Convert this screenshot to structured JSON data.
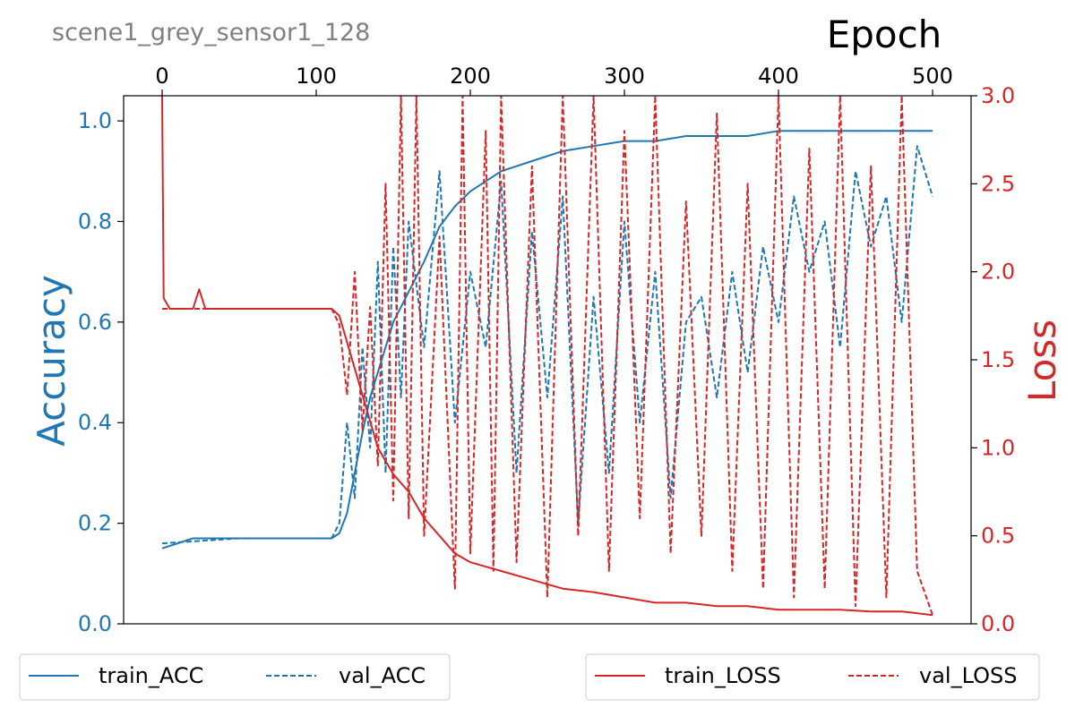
{
  "chart_data": {
    "type": "line",
    "title": "scene1_grey_sensor1_128",
    "xlabel": "Epoch",
    "ylabel": "Accuracy",
    "y2label": "Loss",
    "xlim": [
      -25,
      525
    ],
    "ylim": [
      0,
      1.05
    ],
    "y2lim": [
      0,
      3.0
    ],
    "x_ticks": [
      0,
      100,
      200,
      300,
      400,
      500
    ],
    "y_ticks": [
      0.0,
      0.2,
      0.4,
      0.6,
      0.8,
      1.0
    ],
    "y2_ticks": [
      0.0,
      0.5,
      1.0,
      1.5,
      2.0,
      2.5,
      3.0
    ],
    "x_axis_position": "top",
    "grid": false,
    "colors": {
      "acc": "#1f77b4",
      "loss": "#d62728",
      "title": "#808080"
    },
    "legends": [
      {
        "placement": "bottom-left",
        "entries": [
          "train_ACC",
          "val_ACC"
        ]
      },
      {
        "placement": "bottom-right",
        "entries": [
          "train_LOSS",
          "val_LOSS"
        ]
      }
    ],
    "series": [
      {
        "name": "train_ACC",
        "axis": "left",
        "style": "solid",
        "color": "#1f77b4",
        "x": [
          0,
          20,
          40,
          60,
          80,
          100,
          110,
          115,
          120,
          125,
          130,
          135,
          140,
          145,
          150,
          160,
          170,
          180,
          190,
          200,
          220,
          240,
          260,
          280,
          300,
          320,
          340,
          360,
          380,
          400,
          420,
          440,
          460,
          480,
          500
        ],
        "values": [
          0.15,
          0.17,
          0.17,
          0.17,
          0.17,
          0.17,
          0.17,
          0.18,
          0.22,
          0.3,
          0.38,
          0.45,
          0.5,
          0.55,
          0.6,
          0.66,
          0.72,
          0.79,
          0.83,
          0.86,
          0.9,
          0.92,
          0.94,
          0.95,
          0.96,
          0.96,
          0.97,
          0.97,
          0.97,
          0.98,
          0.98,
          0.98,
          0.98,
          0.98,
          0.98
        ]
      },
      {
        "name": "val_ACC",
        "axis": "left",
        "style": "dashed",
        "color": "#1f77b4",
        "x": [
          0,
          50,
          100,
          110,
          115,
          120,
          125,
          130,
          135,
          140,
          145,
          150,
          155,
          160,
          170,
          180,
          190,
          200,
          210,
          220,
          230,
          240,
          250,
          260,
          270,
          280,
          290,
          300,
          310,
          320,
          330,
          340,
          350,
          360,
          370,
          380,
          390,
          400,
          410,
          420,
          430,
          440,
          450,
          460,
          470,
          480,
          490,
          500
        ],
        "values": [
          0.16,
          0.17,
          0.17,
          0.17,
          0.2,
          0.4,
          0.25,
          0.55,
          0.35,
          0.72,
          0.3,
          0.75,
          0.45,
          0.8,
          0.55,
          0.9,
          0.4,
          0.7,
          0.55,
          0.88,
          0.3,
          0.78,
          0.45,
          0.85,
          0.2,
          0.65,
          0.3,
          0.8,
          0.4,
          0.7,
          0.25,
          0.6,
          0.65,
          0.45,
          0.7,
          0.5,
          0.75,
          0.6,
          0.85,
          0.7,
          0.8,
          0.55,
          0.9,
          0.75,
          0.85,
          0.6,
          0.95,
          0.85
        ]
      },
      {
        "name": "train_LOSS",
        "axis": "right",
        "style": "solid",
        "color": "#d62728",
        "x": [
          0,
          1,
          5,
          20,
          24,
          28,
          60,
          100,
          110,
          115,
          120,
          125,
          130,
          135,
          140,
          150,
          160,
          170,
          180,
          190,
          200,
          220,
          240,
          260,
          280,
          300,
          320,
          340,
          360,
          380,
          400,
          420,
          440,
          460,
          480,
          500
        ],
        "values": [
          3.0,
          1.85,
          1.79,
          1.79,
          1.9,
          1.79,
          1.79,
          1.79,
          1.79,
          1.75,
          1.6,
          1.45,
          1.3,
          1.15,
          1.0,
          0.85,
          0.75,
          0.6,
          0.5,
          0.4,
          0.35,
          0.3,
          0.25,
          0.2,
          0.18,
          0.15,
          0.12,
          0.12,
          0.1,
          0.1,
          0.08,
          0.08,
          0.08,
          0.07,
          0.07,
          0.05
        ]
      },
      {
        "name": "val_LOSS",
        "axis": "right",
        "style": "dashed",
        "color": "#d62728",
        "x": [
          0,
          50,
          100,
          110,
          115,
          120,
          125,
          130,
          135,
          140,
          145,
          150,
          155,
          160,
          165,
          170,
          180,
          190,
          195,
          200,
          210,
          215,
          220,
          230,
          240,
          250,
          260,
          270,
          280,
          290,
          300,
          310,
          320,
          330,
          340,
          350,
          360,
          370,
          380,
          390,
          400,
          410,
          420,
          430,
          440,
          450,
          460,
          470,
          480,
          490,
          500
        ],
        "values": [
          1.79,
          1.79,
          1.79,
          1.79,
          1.7,
          1.3,
          2.0,
          1.1,
          1.8,
          0.9,
          2.5,
          0.7,
          3.0,
          0.6,
          3.0,
          0.5,
          2.2,
          0.2,
          3.0,
          0.4,
          2.8,
          0.3,
          3.0,
          0.35,
          2.6,
          0.15,
          3.0,
          0.5,
          3.0,
          0.3,
          2.8,
          0.6,
          3.0,
          0.4,
          2.4,
          0.5,
          2.9,
          0.3,
          2.5,
          0.2,
          3.0,
          0.15,
          2.7,
          0.2,
          3.0,
          0.1,
          2.6,
          0.15,
          3.0,
          0.3,
          0.05
        ]
      }
    ]
  }
}
